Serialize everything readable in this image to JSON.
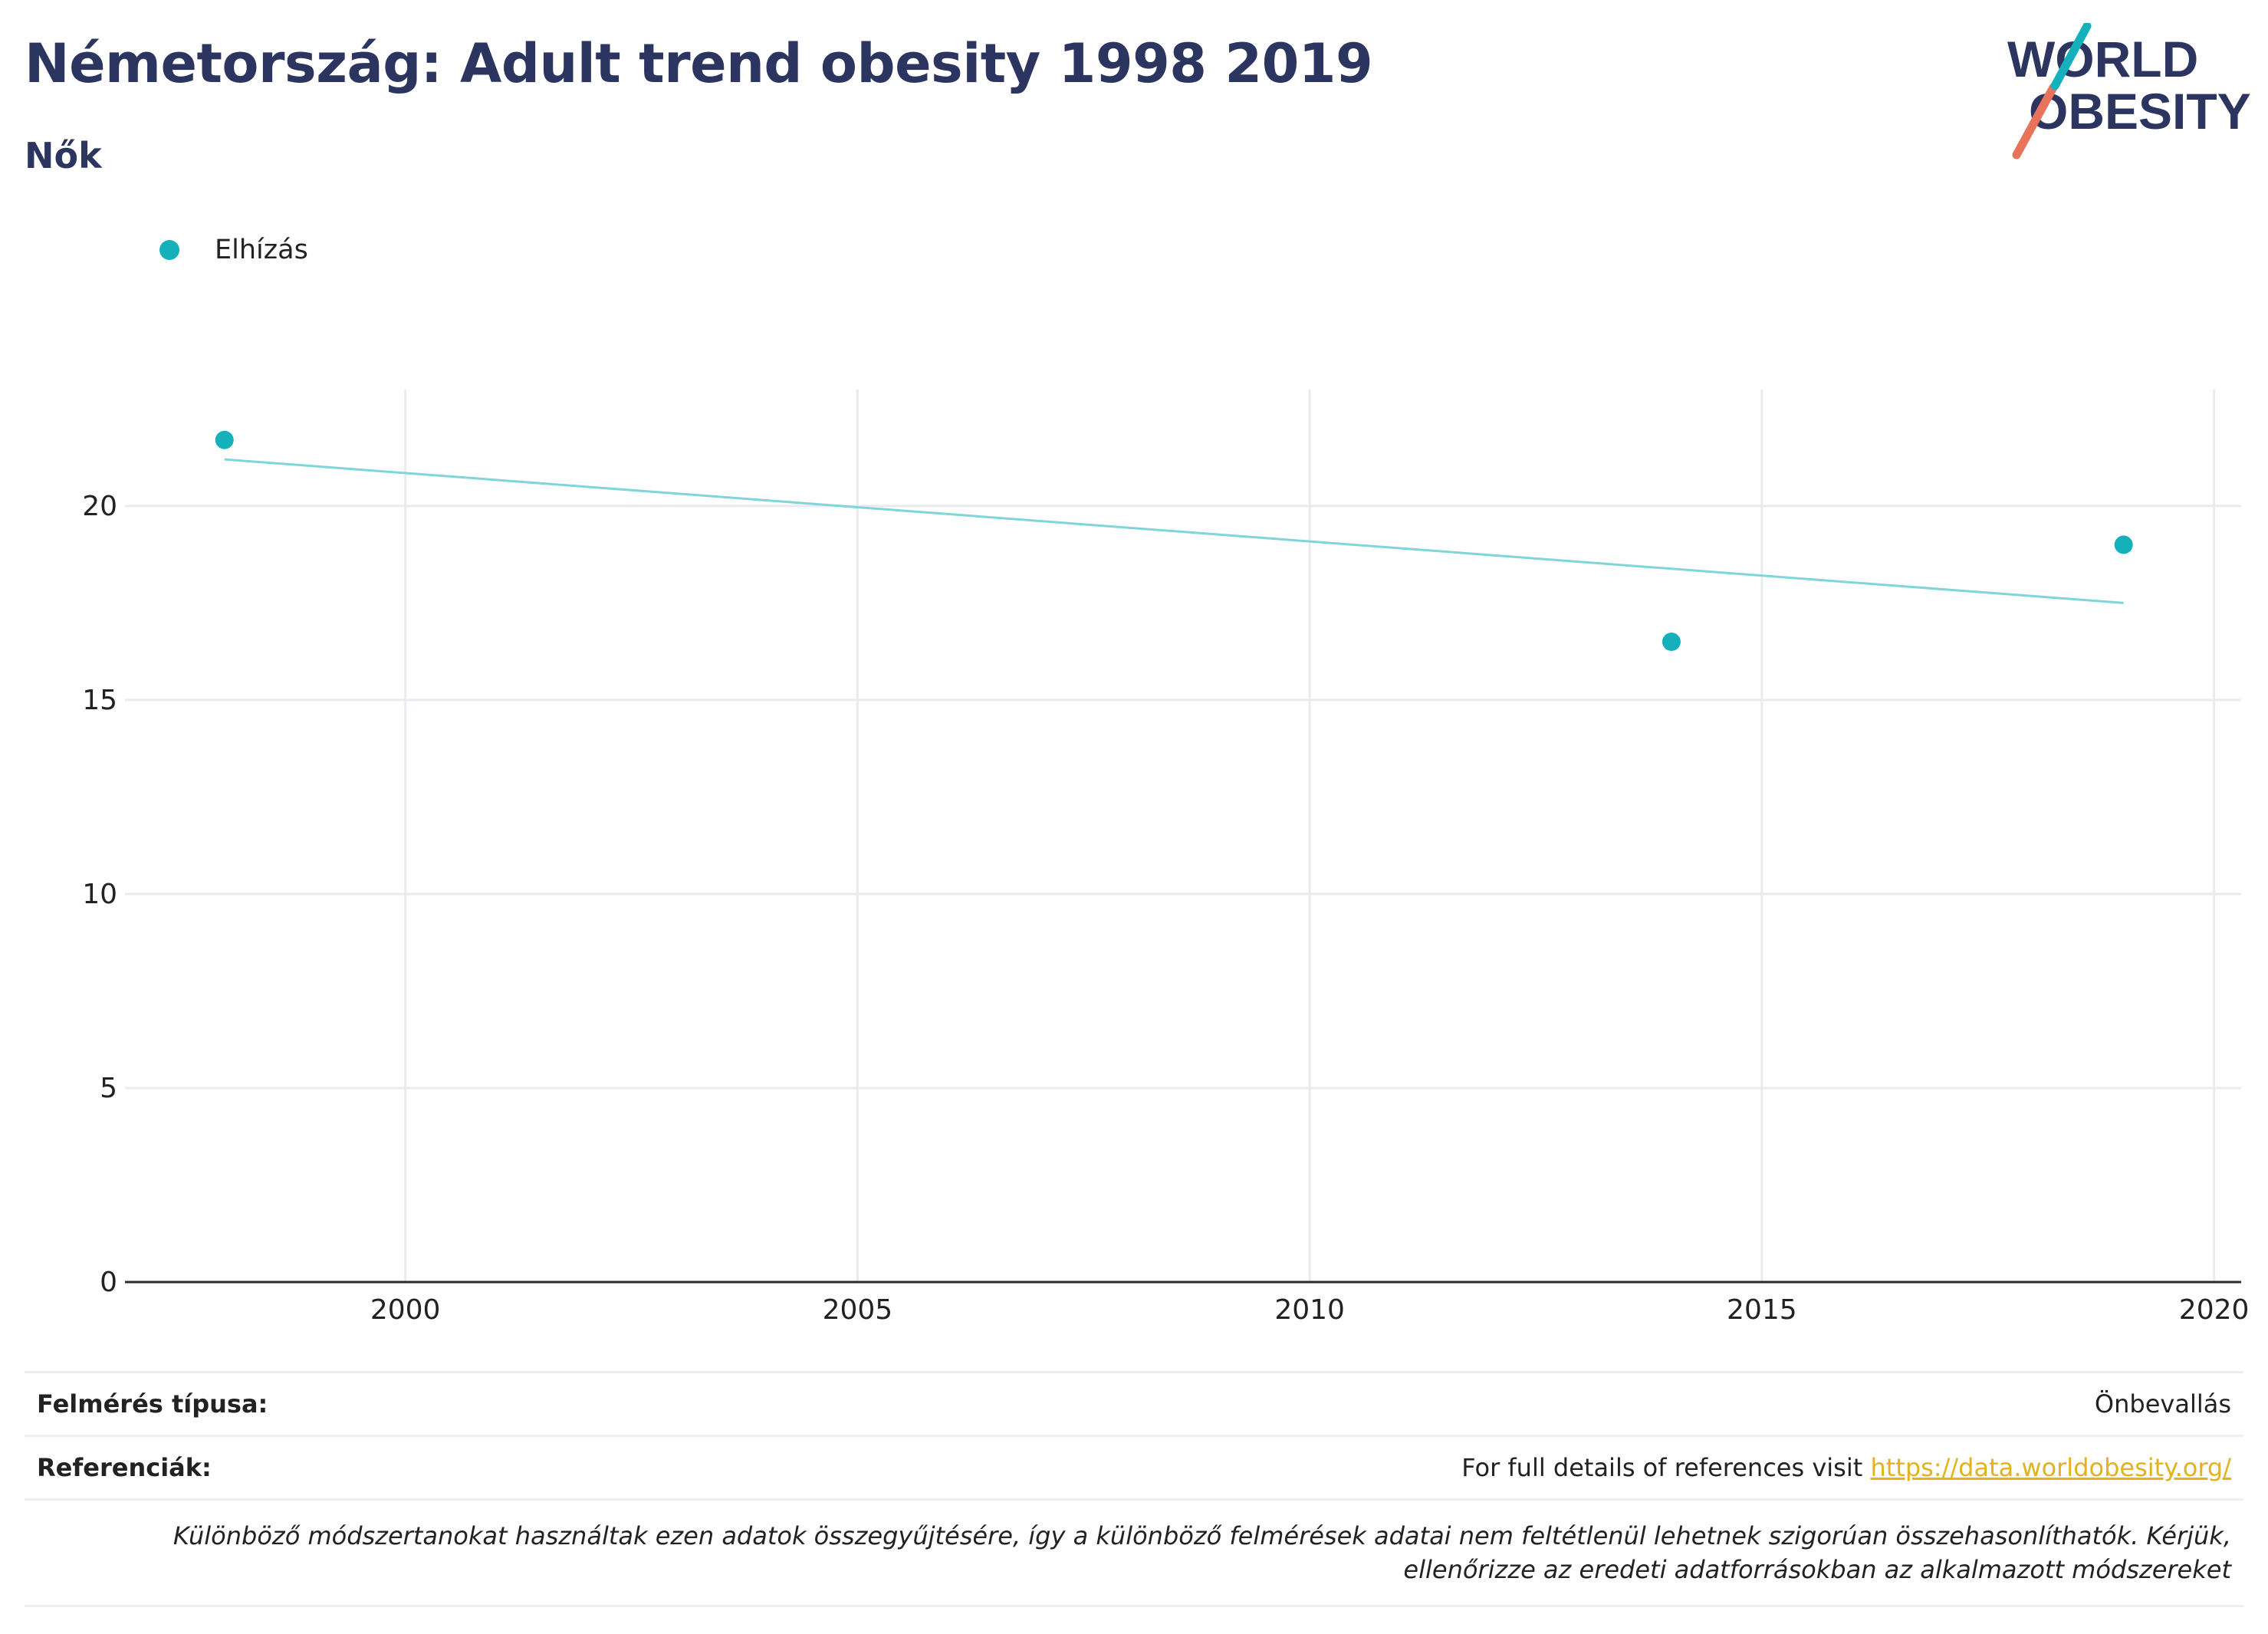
{
  "header": {
    "title": "Németország: Adult trend obesity 1998 2019",
    "subtitle": "Nők"
  },
  "logo": {
    "line1": "WORLD",
    "line2": "OBESITY",
    "colors": {
      "text": "#2b3560",
      "slash_teal": "#14b1bb",
      "slash_coral": "#e8735a"
    }
  },
  "chart_data": {
    "type": "scatter",
    "series": [
      {
        "name": "Elhízás",
        "color": "#14b1bb",
        "x": [
          1998,
          2014,
          2019
        ],
        "y": [
          21.7,
          16.5,
          19.0
        ]
      }
    ],
    "trendline": {
      "color": "#7fd5da",
      "x": [
        1998,
        2019
      ],
      "y": [
        21.2,
        17.5
      ]
    },
    "xlim": [
      1996.9,
      2020.3
    ],
    "ylim": [
      0,
      23
    ],
    "xticks": [
      2000,
      2005,
      2010,
      2015,
      2020
    ],
    "yticks": [
      0,
      5,
      10,
      15,
      20
    ],
    "grid": true,
    "legend": "top-left"
  },
  "footer": {
    "survey_type_label": "Felmérés típusa:",
    "survey_type_value": "Önbevallás",
    "references_label": "Referenciák:",
    "references_text": "For full details of references visit",
    "references_link": "https://data.worldobesity.org/",
    "note": "Különböző módszertanokat használtak ezen adatok összegyűjtésére, így a különböző felmérések adatai nem feltétlenül lehetnek szigorúan összehasonlíthatók. Kérjük, ellenőrizze az eredeti adatforrásokban az alkalmazott módszereket"
  }
}
